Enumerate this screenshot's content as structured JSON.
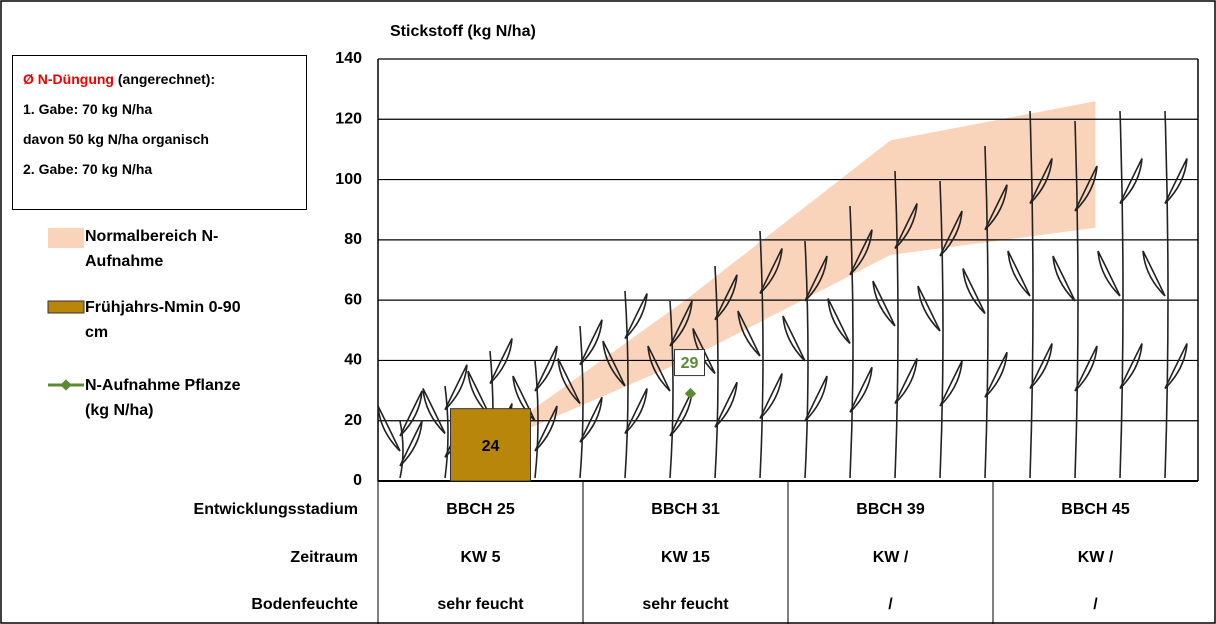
{
  "chart_data": {
    "type": "combo",
    "title": "Stickstoff (kg N/ha)",
    "categories": [
      "BBCH 25",
      "BBCH 31",
      "BBCH 39",
      "BBCH 45"
    ],
    "ylim": [
      0,
      140
    ],
    "yticks": [
      0,
      20,
      40,
      60,
      80,
      100,
      120,
      140
    ],
    "grid": true,
    "series": [
      {
        "name": "Normalbereich N-Aufnahme",
        "type": "band",
        "color": "#f9d3ba",
        "lower": [
          17,
          40,
          75,
          84
        ],
        "upper": [
          22,
          60,
          113,
          126
        ]
      },
      {
        "name": "Frühjahrs-Nmin 0-90 cm",
        "type": "bar",
        "color": "#b8860b",
        "values": [
          24,
          null,
          null,
          null
        ]
      },
      {
        "name": "N-Aufnahme Pflanze (kg N/ha)",
        "type": "line",
        "color": "#5a8a32",
        "values": [
          null,
          29,
          null,
          null
        ]
      }
    ]
  },
  "fertilization": {
    "heading": "Ø N-Düngung",
    "heading_note": "(angerechnet):",
    "lines": [
      "1. Gabe: 70 kg N/ha",
      "davon 50 kg N/ha organisch",
      "2. Gabe: 70 kg N/ha"
    ]
  },
  "table": {
    "stage_label": "Entwicklungsstadium",
    "rows": [
      {
        "label": "Zeitraum",
        "cells": [
          "KW 5",
          "KW 15",
          "KW /",
          "KW /"
        ]
      },
      {
        "label": "Bodenfeuchte",
        "cells": [
          "sehr feucht",
          "sehr feucht",
          "/",
          "/"
        ]
      }
    ]
  }
}
